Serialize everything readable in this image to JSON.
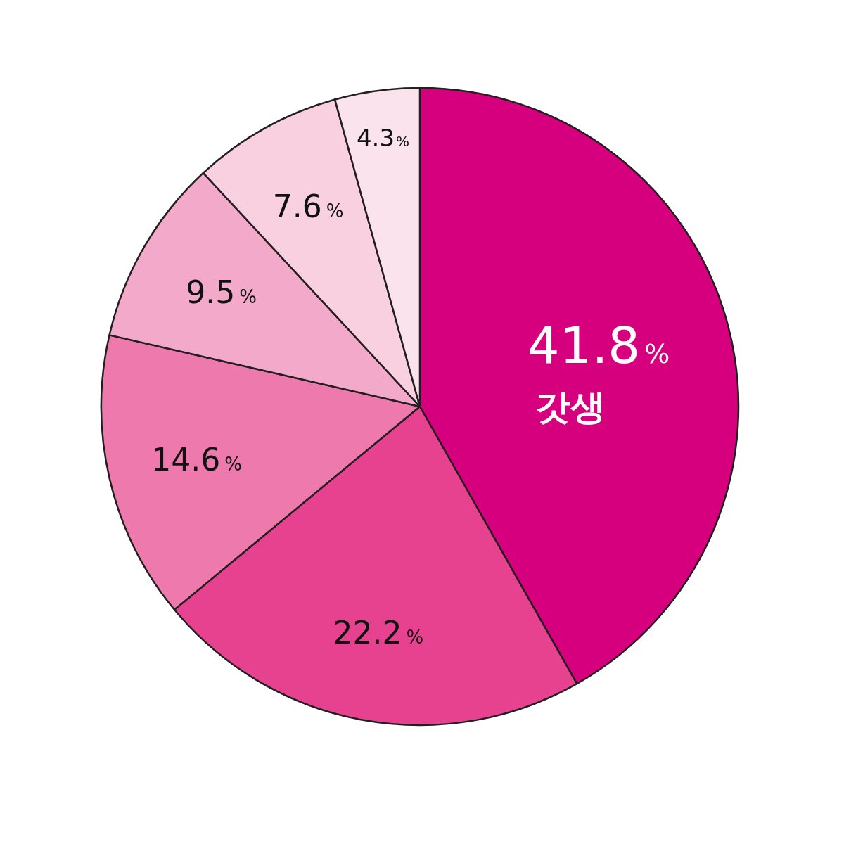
{
  "chart_data": {
    "type": "pie",
    "categories": [
      "갓생",
      null,
      null,
      null,
      null,
      null
    ],
    "values": [
      41.8,
      22.2,
      14.6,
      9.5,
      7.6,
      4.3
    ],
    "colors": [
      "#d6007e",
      "#e64290",
      "#ee7aad",
      "#f3a9c9",
      "#f8d0e0",
      "#fbe3ed"
    ],
    "value_labels": [
      "41.8%",
      "22.2%",
      "14.6%",
      "9.5%",
      "7.6%",
      "4.3%"
    ]
  }
}
